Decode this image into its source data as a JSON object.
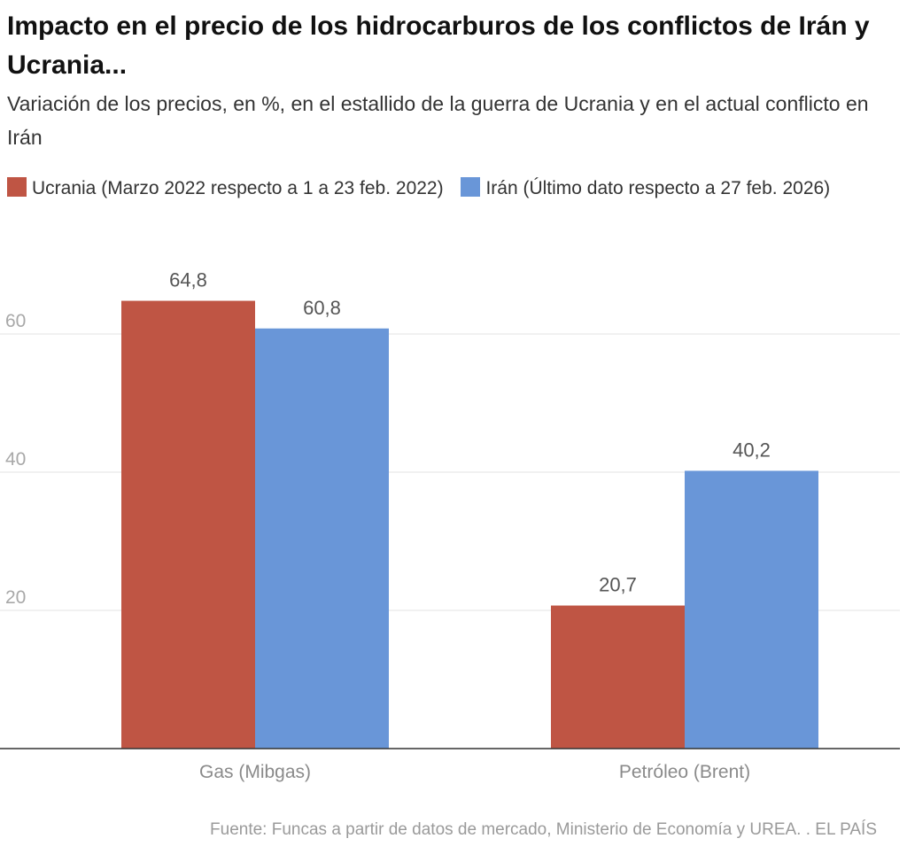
{
  "title": "Impacto en el precio de los hidrocarburos de los conflictos de Irán y Ucrania...",
  "subtitle": "Variación de los precios, en %, en el estallido de la guerra de Ucrania y en el actual conflicto en Irán",
  "source": "Fuente: Funcas a partir de datos de mercado, Ministerio de Economía y UREA. . EL PAÍS",
  "chart_data": {
    "type": "bar",
    "categories": [
      "Gas (Mibgas)",
      "Petróleo (Brent)"
    ],
    "series": [
      {
        "name": "Ucrania (Marzo 2022 respecto a 1 a 23 feb. 2022)",
        "values": [
          64.8,
          20.7
        ],
        "color": "#bf5544",
        "labels": [
          "64,8",
          "20,7"
        ]
      },
      {
        "name": "Irán (Último dato respecto a 27 feb. 2026)",
        "values": [
          60.8,
          40.2
        ],
        "color": "#6996d8",
        "labels": [
          "60,8",
          "40,2"
        ]
      }
    ],
    "yticks": [
      20,
      40,
      60
    ],
    "ytick_labels": [
      "20",
      "40",
      "60"
    ],
    "ylim": [
      0,
      70
    ],
    "grid": true,
    "legend_position": "top-left",
    "title": "Impacto en el precio de los hidrocarburos de los conflictos de Irán y Ucrania...",
    "xlabel": "",
    "ylabel": ""
  }
}
